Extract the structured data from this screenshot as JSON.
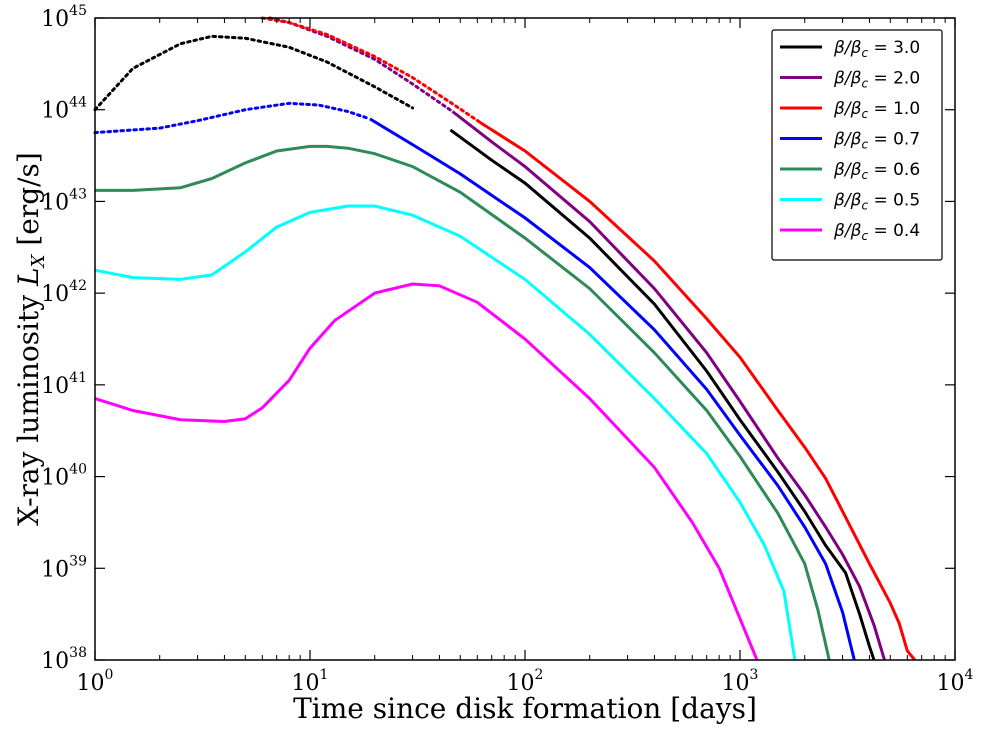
{
  "chart_data": {
    "type": "line",
    "xscale": "log",
    "yscale": "log",
    "xlim": [
      1,
      10000
    ],
    "ylim": [
      1e+38,
      1e+45
    ],
    "xlabel": "Time since disk formation [days]",
    "ylabel": "X-ray luminosity L_X [erg/s]",
    "ylabel_plain": "X-ray luminosity ",
    "ylabel_symbol": "L",
    "ylabel_sub": "X",
    "ylabel_unit": " [erg/s]",
    "x_ticks": [
      {
        "base": "10",
        "exp": "0",
        "value": 1
      },
      {
        "base": "10",
        "exp": "1",
        "value": 10
      },
      {
        "base": "10",
        "exp": "2",
        "value": 100
      },
      {
        "base": "10",
        "exp": "3",
        "value": 1000
      },
      {
        "base": "10",
        "exp": "4",
        "value": 10000
      }
    ],
    "y_ticks": [
      {
        "base": "10",
        "exp": "38",
        "value": 38
      },
      {
        "base": "10",
        "exp": "39",
        "value": 39
      },
      {
        "base": "10",
        "exp": "40",
        "value": 40
      },
      {
        "base": "10",
        "exp": "41",
        "value": 41
      },
      {
        "base": "10",
        "exp": "42",
        "value": 42
      },
      {
        "base": "10",
        "exp": "43",
        "value": 43
      },
      {
        "base": "10",
        "exp": "44",
        "value": 44
      },
      {
        "base": "10",
        "exp": "45",
        "value": 45
      }
    ],
    "legend_position": "top-right",
    "series": [
      {
        "name": "β/β_c = 3.0",
        "legend_ratio": "β/β",
        "legend_sub": "c",
        "legend_value": " = 3.0",
        "color": "#000000",
        "solid_from_days": 33,
        "points": [
          [
            1,
            44.0
          ],
          [
            1.5,
            44.45
          ],
          [
            2.5,
            44.72
          ],
          [
            3.5,
            44.8
          ],
          [
            5,
            44.78
          ],
          [
            8,
            44.68
          ],
          [
            12,
            44.52
          ],
          [
            20,
            44.25
          ],
          [
            30,
            44.02
          ],
          [
            45,
            43.78
          ],
          [
            70,
            43.45
          ],
          [
            100,
            43.2
          ],
          [
            200,
            42.6
          ],
          [
            400,
            41.88
          ],
          [
            700,
            41.15
          ],
          [
            1000,
            40.62
          ],
          [
            1500,
            40.05
          ],
          [
            2000,
            39.62
          ],
          [
            2500,
            39.25
          ],
          [
            3100,
            38.95
          ],
          [
            3600,
            38.5
          ],
          [
            4000,
            38.15
          ],
          [
            4200,
            38.0
          ]
        ]
      },
      {
        "name": "β/β_c = 2.0",
        "legend_ratio": "β/β",
        "legend_sub": "c",
        "legend_value": " = 2.0",
        "color": "#800080",
        "solid_from_days": 46,
        "points": [
          [
            6.5,
            45.0
          ],
          [
            8,
            44.95
          ],
          [
            12,
            44.8
          ],
          [
            20,
            44.55
          ],
          [
            30,
            44.28
          ],
          [
            46,
            43.98
          ],
          [
            70,
            43.65
          ],
          [
            100,
            43.38
          ],
          [
            200,
            42.78
          ],
          [
            400,
            42.05
          ],
          [
            700,
            41.35
          ],
          [
            1000,
            40.82
          ],
          [
            1500,
            40.2
          ],
          [
            2000,
            39.8
          ],
          [
            2500,
            39.45
          ],
          [
            3000,
            39.15
          ],
          [
            3600,
            38.8
          ],
          [
            4200,
            38.38
          ],
          [
            4700,
            38.0
          ]
        ]
      },
      {
        "name": "β/β_c = 1.0",
        "legend_ratio": "β/β",
        "legend_sub": "c",
        "legend_value": " = 1.0",
        "color": "#ff0000",
        "solid_from_days": 62,
        "points": [
          [
            6,
            45.0
          ],
          [
            8,
            44.95
          ],
          [
            12,
            44.82
          ],
          [
            20,
            44.58
          ],
          [
            30,
            44.35
          ],
          [
            45,
            44.08
          ],
          [
            62,
            43.86
          ],
          [
            100,
            43.55
          ],
          [
            200,
            43.0
          ],
          [
            400,
            42.35
          ],
          [
            700,
            41.72
          ],
          [
            1000,
            41.3
          ],
          [
            1500,
            40.72
          ],
          [
            2000,
            40.32
          ],
          [
            2500,
            39.98
          ],
          [
            3000,
            39.62
          ],
          [
            4000,
            39.05
          ],
          [
            5000,
            38.62
          ],
          [
            5500,
            38.4
          ],
          [
            6000,
            38.1
          ],
          [
            6500,
            38.0
          ]
        ]
      },
      {
        "name": "β/β_c = 0.7",
        "legend_ratio": "β/β",
        "legend_sub": "c",
        "legend_value": " = 0.7",
        "color": "#0000ff",
        "solid_from_days": 19,
        "points": [
          [
            1,
            43.75
          ],
          [
            2,
            43.8
          ],
          [
            3,
            43.88
          ],
          [
            5,
            44.0
          ],
          [
            8,
            44.07
          ],
          [
            11,
            44.05
          ],
          [
            15,
            43.98
          ],
          [
            19,
            43.9
          ],
          [
            30,
            43.62
          ],
          [
            50,
            43.3
          ],
          [
            100,
            42.82
          ],
          [
            200,
            42.28
          ],
          [
            400,
            41.6
          ],
          [
            700,
            40.95
          ],
          [
            1000,
            40.45
          ],
          [
            1500,
            39.9
          ],
          [
            2000,
            39.45
          ],
          [
            2500,
            39.05
          ],
          [
            3000,
            38.52
          ],
          [
            3400,
            38.0
          ]
        ]
      },
      {
        "name": "β/β_c = 0.6",
        "legend_ratio": "β/β",
        "legend_sub": "c",
        "legend_value": " = 0.6",
        "color": "#2e8b57",
        "solid_from_days": 1,
        "points": [
          [
            1,
            43.12
          ],
          [
            1.5,
            43.12
          ],
          [
            2.5,
            43.15
          ],
          [
            3.5,
            43.25
          ],
          [
            5,
            43.42
          ],
          [
            7,
            43.55
          ],
          [
            10,
            43.6
          ],
          [
            12,
            43.6
          ],
          [
            15,
            43.58
          ],
          [
            20,
            43.52
          ],
          [
            30,
            43.38
          ],
          [
            50,
            43.1
          ],
          [
            100,
            42.6
          ],
          [
            200,
            42.05
          ],
          [
            400,
            41.35
          ],
          [
            700,
            40.72
          ],
          [
            1000,
            40.22
          ],
          [
            1500,
            39.6
          ],
          [
            2000,
            39.05
          ],
          [
            2300,
            38.55
          ],
          [
            2600,
            38.0
          ]
        ]
      },
      {
        "name": "β/β_c = 0.5",
        "legend_ratio": "β/β",
        "legend_sub": "c",
        "legend_value": " = 0.5",
        "color": "#00ffff",
        "solid_from_days": 1,
        "points": [
          [
            1,
            42.25
          ],
          [
            1.5,
            42.17
          ],
          [
            2.5,
            42.15
          ],
          [
            3.5,
            42.2
          ],
          [
            5,
            42.45
          ],
          [
            7,
            42.72
          ],
          [
            10,
            42.88
          ],
          [
            15,
            42.95
          ],
          [
            20,
            42.95
          ],
          [
            30,
            42.85
          ],
          [
            50,
            42.62
          ],
          [
            100,
            42.15
          ],
          [
            200,
            41.55
          ],
          [
            400,
            40.85
          ],
          [
            700,
            40.25
          ],
          [
            1000,
            39.72
          ],
          [
            1300,
            39.25
          ],
          [
            1600,
            38.75
          ],
          [
            1800,
            38.0
          ]
        ]
      },
      {
        "name": "β/β_c = 0.4",
        "legend_ratio": "β/β",
        "legend_sub": "c",
        "legend_value": " = 0.4",
        "color": "#ff00ff",
        "solid_from_days": 1,
        "points": [
          [
            1,
            40.85
          ],
          [
            1.5,
            40.72
          ],
          [
            2.5,
            40.62
          ],
          [
            4,
            40.6
          ],
          [
            5,
            40.63
          ],
          [
            6,
            40.75
          ],
          [
            8,
            41.05
          ],
          [
            10,
            41.4
          ],
          [
            13,
            41.7
          ],
          [
            20,
            42.0
          ],
          [
            30,
            42.1
          ],
          [
            40,
            42.08
          ],
          [
            60,
            41.9
          ],
          [
            100,
            41.5
          ],
          [
            200,
            40.85
          ],
          [
            400,
            40.1
          ],
          [
            600,
            39.5
          ],
          [
            800,
            39.0
          ],
          [
            1000,
            38.45
          ],
          [
            1200,
            38.0
          ]
        ]
      }
    ]
  }
}
